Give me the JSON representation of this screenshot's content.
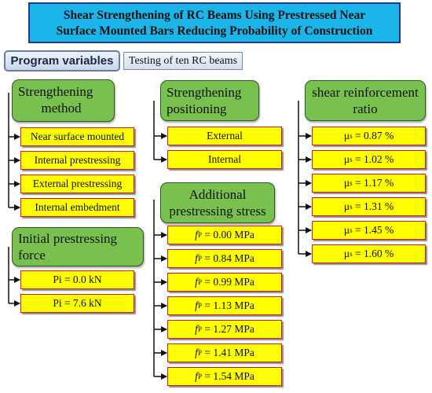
{
  "title": {
    "line1": "Shear Strengthening of RC Beams Using Prestressed Near",
    "line2": "Surface Mounted Bars Reducing Probability of Construction"
  },
  "program_variables": "Program variables",
  "testing": "Testing of ten RC beams",
  "strengthening_method": {
    "heading_line1": "Strengthening",
    "heading_line2": "method",
    "items": [
      "Near surface mounted",
      "Internal prestressing",
      "External prestressing",
      "Internal embedment"
    ]
  },
  "initial_force": {
    "heading_line1": "Initial prestressing",
    "heading_line2": "force",
    "items": [
      "Pi = 0.0 kN",
      "Pi = 7.6 kN"
    ]
  },
  "positioning": {
    "heading_line1": "Strengthening",
    "heading_line2": "positioning",
    "items": [
      "External",
      "Internal"
    ]
  },
  "additional_stress": {
    "heading_line1": "Additional",
    "heading_line2": "prestressing stress",
    "symbol": "f",
    "subscript": "P",
    "items": [
      "= 0.00 MPa",
      "= 0.84 MPa",
      "= 0.99 MPa",
      "= 1.13 MPa",
      "= 1.27 MPa",
      "= 1.41 MPa",
      "= 1.54 MPa"
    ]
  },
  "shear_ratio": {
    "heading_line1": "shear reinforcement",
    "heading_line2": "ratio",
    "symbol": "μ",
    "subscript": "s",
    "items": [
      "= 0.87 %",
      "= 1.02 %",
      "= 1.17 %",
      "= 1.31 %",
      "= 1.45 %",
      "= 1.60 %"
    ]
  },
  "colors": {
    "title_bg": "#1cb5ea",
    "heading_bg": "#78c14e",
    "item_bg": "#ffff00",
    "item_border": "#d41a1a"
  }
}
